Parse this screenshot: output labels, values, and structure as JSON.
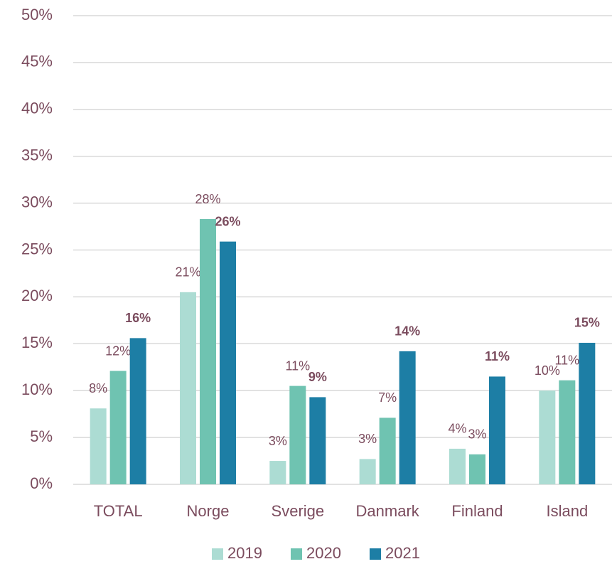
{
  "chart_data": {
    "type": "bar",
    "categories": [
      "TOTAL",
      "Norge",
      "Sverige",
      "Danmark",
      "Finland",
      "Island"
    ],
    "series": [
      {
        "name": "2019",
        "color": "#acdcd3",
        "values": [
          8.1,
          20.5,
          2.5,
          2.7,
          3.8,
          10.0
        ],
        "value_labels": [
          "8%",
          "21%",
          "3%",
          "3%",
          "4%",
          "10%"
        ]
      },
      {
        "name": "2020",
        "color": "#6fc3b1",
        "values": [
          12.1,
          28.3,
          10.5,
          7.1,
          3.2,
          11.1
        ],
        "value_labels": [
          "12%",
          "28%",
          "11%",
          "7%",
          "3%",
          "11%"
        ]
      },
      {
        "name": "2021",
        "color": "#1d7ea5",
        "values": [
          15.6,
          25.9,
          9.3,
          14.2,
          11.5,
          15.1
        ],
        "value_labels": [
          "16%",
          "26%",
          "9%",
          "14%",
          "11%",
          "15%"
        ]
      }
    ],
    "ylim": [
      0,
      50
    ],
    "yticks": [
      {
        "value": 0,
        "label": "0%"
      },
      {
        "value": 5,
        "label": "5%"
      },
      {
        "value": 10,
        "label": "10%"
      },
      {
        "value": 15,
        "label": "15%"
      },
      {
        "value": 20,
        "label": "20%"
      },
      {
        "value": 25,
        "label": "25%"
      },
      {
        "value": 30,
        "label": "30%"
      },
      {
        "value": 35,
        "label": "35%"
      },
      {
        "value": 40,
        "label": "40%"
      },
      {
        "value": 45,
        "label": "45%"
      },
      {
        "value": 50,
        "label": "50%"
      }
    ],
    "grid": true,
    "legend": "bottom"
  }
}
